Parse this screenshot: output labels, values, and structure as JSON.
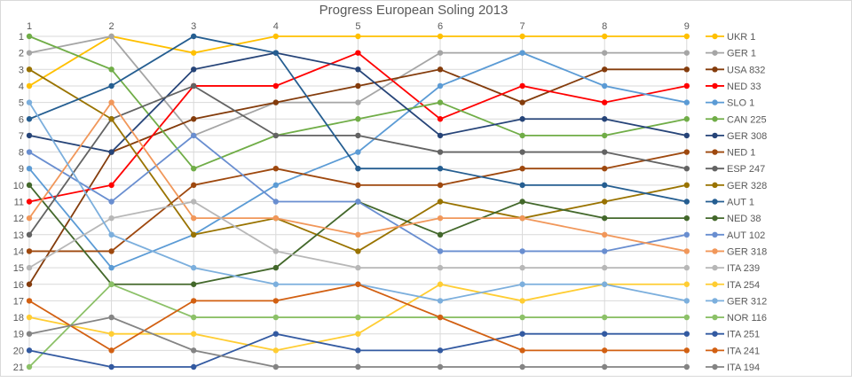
{
  "chart_data": {
    "type": "line",
    "title": "Progress European Soling 2013",
    "x": [
      1,
      2,
      3,
      4,
      5,
      6,
      7,
      8,
      9
    ],
    "x_tick_labels": [
      "1",
      "2",
      "3",
      "4",
      "5",
      "6",
      "7",
      "8",
      "9"
    ],
    "y_tick_labels": [
      "1",
      "2",
      "3",
      "4",
      "5",
      "6",
      "7",
      "8",
      "9",
      "10",
      "11",
      "12",
      "13",
      "14",
      "15",
      "16",
      "17",
      "18",
      "19",
      "20",
      "21"
    ],
    "ylim": [
      1,
      21
    ],
    "y_reversed": true,
    "x_axis_position": "top",
    "grid": true,
    "legend_placement": "right",
    "series": [
      {
        "name": "UKR 1",
        "color": "#FFC000",
        "values": [
          4,
          1,
          2,
          1,
          1,
          1,
          1,
          1,
          1
        ]
      },
      {
        "name": "GER 1",
        "color": "#A5A5A5",
        "values": [
          2,
          1,
          7,
          5,
          5,
          2,
          2,
          2,
          2
        ]
      },
      {
        "name": "USA 832",
        "color": "#843C0C",
        "values": [
          16,
          8,
          6,
          5,
          4,
          3,
          5,
          3,
          3
        ]
      },
      {
        "name": "NED 33",
        "color": "#FF0000",
        "values": [
          11,
          10,
          4,
          4,
          2,
          6,
          4,
          5,
          4
        ]
      },
      {
        "name": "SLO 1",
        "color": "#5B9BD5",
        "values": [
          9,
          15,
          13,
          10,
          8,
          4,
          2,
          4,
          5
        ]
      },
      {
        "name": "CAN 225",
        "color": "#70AD47",
        "values": [
          1,
          3,
          9,
          7,
          6,
          5,
          7,
          7,
          6
        ]
      },
      {
        "name": "GER 308",
        "color": "#264478",
        "values": [
          7,
          8,
          3,
          2,
          3,
          7,
          6,
          6,
          7
        ]
      },
      {
        "name": "NED 1",
        "color": "#9E480E",
        "values": [
          14,
          14,
          10,
          9,
          10,
          10,
          9,
          9,
          8
        ]
      },
      {
        "name": "ESP 247",
        "color": "#636363",
        "values": [
          13,
          6,
          4,
          7,
          7,
          8,
          8,
          8,
          9
        ]
      },
      {
        "name": "GER 328",
        "color": "#997300",
        "values": [
          3,
          6,
          13,
          12,
          14,
          11,
          12,
          11,
          10
        ]
      },
      {
        "name": "AUT 1",
        "color": "#255E91",
        "values": [
          6,
          4,
          1,
          2,
          9,
          9,
          10,
          10,
          11
        ]
      },
      {
        "name": "NED 38",
        "color": "#43682B",
        "values": [
          10,
          16,
          16,
          15,
          11,
          13,
          11,
          12,
          12
        ]
      },
      {
        "name": "AUT 102",
        "color": "#698ED0",
        "values": [
          8,
          11,
          7,
          11,
          11,
          14,
          14,
          14,
          13
        ]
      },
      {
        "name": "GER 318",
        "color": "#F1975A",
        "values": [
          12,
          5,
          12,
          12,
          13,
          12,
          12,
          13,
          14
        ]
      },
      {
        "name": "ITA 239",
        "color": "#B7B7B7",
        "values": [
          15,
          12,
          11,
          14,
          15,
          15,
          15,
          15,
          15
        ]
      },
      {
        "name": "ITA 254",
        "color": "#FFCD33",
        "values": [
          18,
          19,
          19,
          20,
          19,
          16,
          17,
          16,
          16
        ]
      },
      {
        "name": "GER 312",
        "color": "#7CAFDD",
        "values": [
          5,
          13,
          15,
          16,
          16,
          17,
          16,
          16,
          17
        ]
      },
      {
        "name": "NOR 116",
        "color": "#8CC168",
        "values": [
          21,
          16,
          18,
          18,
          18,
          18,
          18,
          18,
          18
        ]
      },
      {
        "name": "ITA 251",
        "color": "#335AA1",
        "values": [
          20,
          21,
          21,
          19,
          20,
          20,
          19,
          19,
          19
        ]
      },
      {
        "name": "ITA 241",
        "color": "#D26012",
        "values": [
          17,
          20,
          17,
          17,
          16,
          18,
          20,
          20,
          20
        ]
      },
      {
        "name": "ITA 194",
        "color": "#848484",
        "values": [
          19,
          18,
          20,
          21,
          21,
          21,
          21,
          21,
          21
        ]
      }
    ]
  }
}
